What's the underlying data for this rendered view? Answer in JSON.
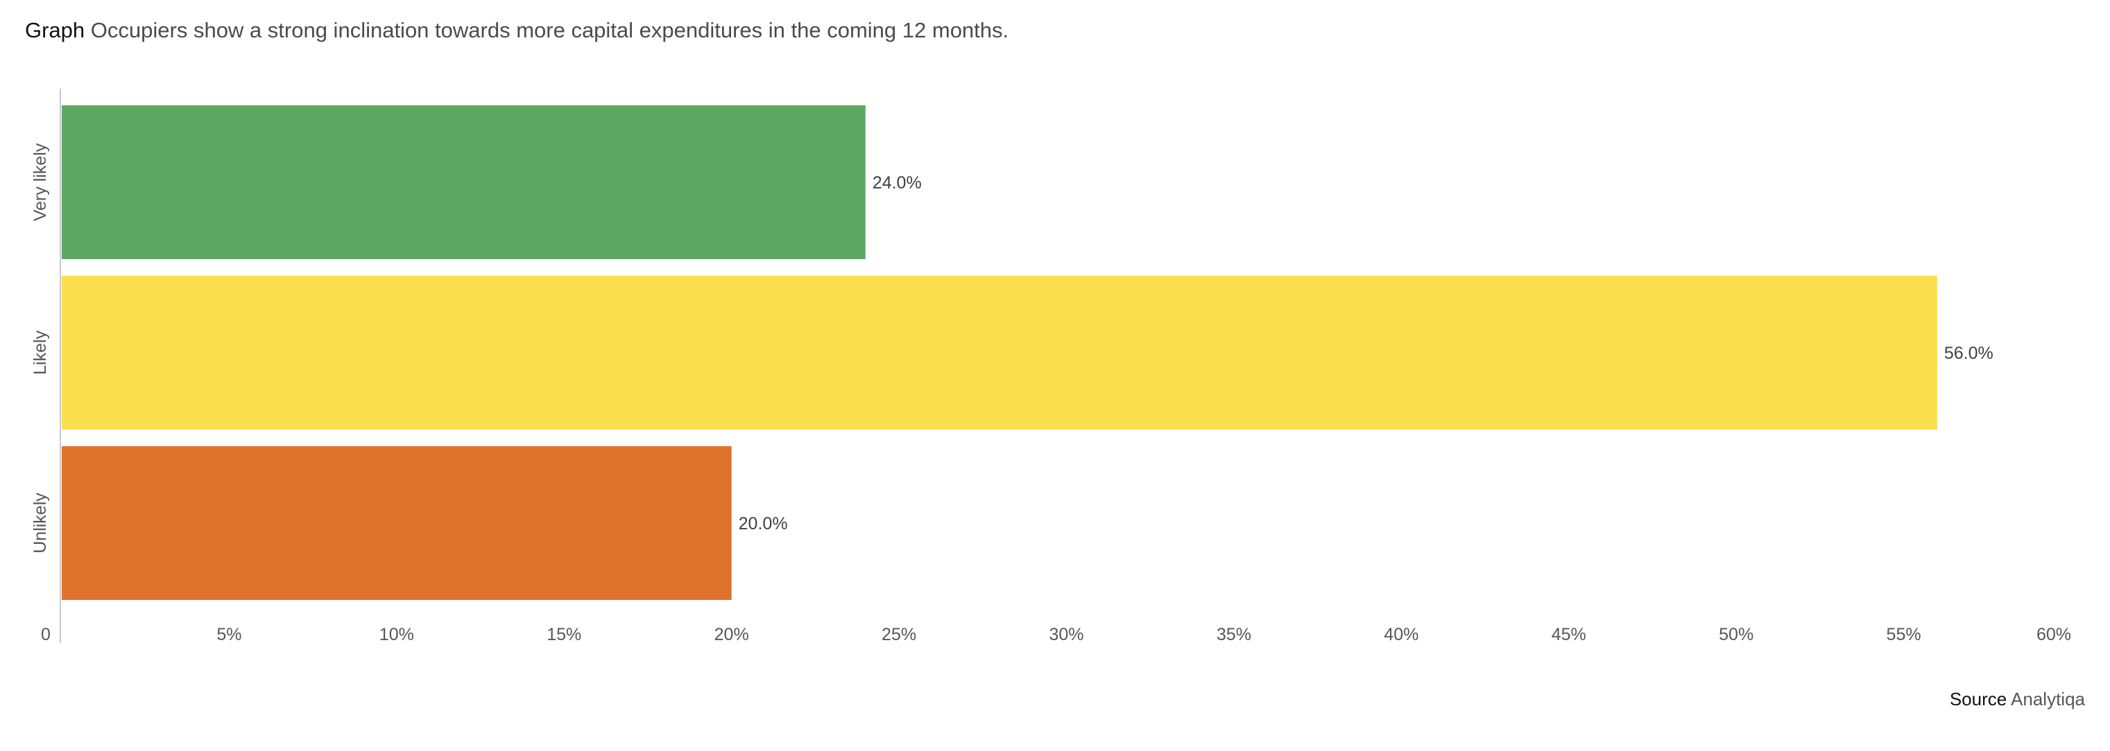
{
  "header": {
    "prefix": "Graph",
    "title": "Occupiers show a strong inclination towards more capital expenditures in the coming 12 months."
  },
  "footer": {
    "source_prefix": "Source",
    "source_name": "Analytiqa"
  },
  "chart_data": {
    "type": "bar",
    "orientation": "horizontal",
    "categories": [
      "Very likely",
      "Likely",
      "Unlikely"
    ],
    "values": [
      24.0,
      56.0,
      20.0
    ],
    "data_labels": [
      "24.0%",
      "56.0%",
      "20.0%"
    ],
    "colors": [
      "#5fa864",
      "#f9e04c",
      "#e0732b"
    ],
    "xlim": [
      0,
      60
    ],
    "x_ticks": [
      0,
      5,
      10,
      15,
      20,
      25,
      30,
      35,
      40,
      45,
      50,
      55,
      60
    ],
    "x_tick_labels": [
      "0",
      "5%",
      "10%",
      "15%",
      "20%",
      "25%",
      "30%",
      "35%",
      "40%",
      "45%",
      "50%",
      "55%",
      "60%"
    ],
    "xlabel": "",
    "ylabel": "",
    "grid": false,
    "legend": "none"
  }
}
